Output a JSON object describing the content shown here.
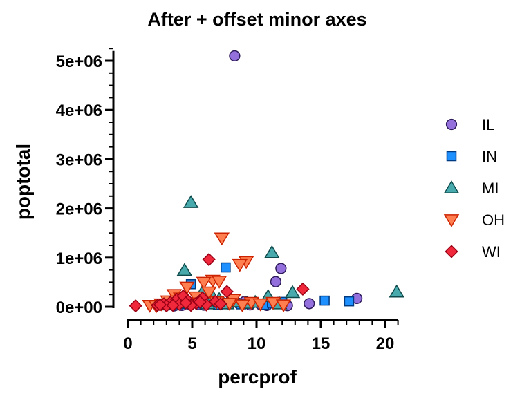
{
  "chart_data": {
    "type": "scatter",
    "title": "After + offset minor axes",
    "xlabel": "percprof",
    "ylabel": "poptotal",
    "xlim": [
      0,
      21
    ],
    "ylim": [
      0,
      5200000
    ],
    "xticks": [
      0,
      5,
      10,
      15,
      20
    ],
    "xtick_labels": [
      "0",
      "5",
      "10",
      "15",
      "20"
    ],
    "yticks": [
      0,
      1000000,
      2000000,
      3000000,
      4000000,
      5000000
    ],
    "ytick_labels": [
      "0e+00",
      "1e+06",
      "2e+06",
      "3e+06",
      "4e+06",
      "5e+06"
    ],
    "grid": false,
    "legend_position": "right",
    "series": [
      {
        "name": "IL",
        "marker": "circle",
        "color": "#9370db",
        "stroke": "#2c1a5a",
        "points": [
          [
            8.3,
            5100000
          ],
          [
            11.9,
            780000
          ],
          [
            11.5,
            510000
          ],
          [
            17.8,
            170000
          ],
          [
            14.1,
            65000
          ],
          [
            10.3,
            50000
          ],
          [
            9.1,
            110000
          ],
          [
            8.6,
            70000
          ],
          [
            7.4,
            80000
          ],
          [
            6.2,
            60000
          ],
          [
            5.5,
            45000
          ],
          [
            4.8,
            40000
          ],
          [
            4.2,
            30000
          ],
          [
            6.9,
            90000
          ],
          [
            7.8,
            60000
          ],
          [
            9.5,
            40000
          ],
          [
            3.6,
            20000
          ],
          [
            5.9,
            35000
          ],
          [
            10.8,
            30000
          ],
          [
            12.4,
            25000
          ]
        ]
      },
      {
        "name": "IN",
        "marker": "square",
        "color": "#1e90ff",
        "stroke": "#003a80",
        "points": [
          [
            7.6,
            800000
          ],
          [
            4.9,
            460000
          ],
          [
            15.3,
            125000
          ],
          [
            17.2,
            110000
          ],
          [
            12.0,
            100000
          ],
          [
            9.8,
            90000
          ],
          [
            8.1,
            110000
          ],
          [
            6.4,
            120000
          ],
          [
            5.6,
            70000
          ],
          [
            4.6,
            60000
          ],
          [
            3.9,
            50000
          ],
          [
            7.0,
            40000
          ],
          [
            8.8,
            50000
          ],
          [
            10.6,
            40000
          ],
          [
            11.2,
            80000
          ],
          [
            2.9,
            30000
          ],
          [
            6.0,
            55000
          ],
          [
            5.1,
            85000
          ]
        ]
      },
      {
        "name": "MI",
        "marker": "triangle-up",
        "color": "#48aaad",
        "stroke": "#0e4a4c",
        "points": [
          [
            4.9,
            2120000
          ],
          [
            11.2,
            1100000
          ],
          [
            4.4,
            740000
          ],
          [
            20.9,
            300000
          ],
          [
            12.8,
            290000
          ],
          [
            10.9,
            210000
          ],
          [
            9.9,
            90000
          ],
          [
            8.4,
            100000
          ],
          [
            7.1,
            150000
          ],
          [
            6.6,
            200000
          ],
          [
            5.4,
            160000
          ],
          [
            4.5,
            120000
          ],
          [
            3.8,
            80000
          ],
          [
            6.2,
            60000
          ],
          [
            7.7,
            60000
          ],
          [
            9.2,
            70000
          ],
          [
            5.8,
            300000
          ],
          [
            2.7,
            40000
          ],
          [
            11.8,
            60000
          ]
        ]
      },
      {
        "name": "OH",
        "marker": "triangle-down",
        "color": "#ff7f50",
        "stroke": "#cc2200",
        "points": [
          [
            7.3,
            1400000
          ],
          [
            9.2,
            920000
          ],
          [
            8.7,
            860000
          ],
          [
            6.6,
            540000
          ],
          [
            7.1,
            520000
          ],
          [
            5.9,
            500000
          ],
          [
            4.6,
            400000
          ],
          [
            3.6,
            250000
          ],
          [
            6.3,
            300000
          ],
          [
            5.3,
            200000
          ],
          [
            8.2,
            150000
          ],
          [
            9.6,
            90000
          ],
          [
            10.3,
            60000
          ],
          [
            11.3,
            90000
          ],
          [
            12.1,
            40000
          ],
          [
            1.7,
            30000
          ],
          [
            2.6,
            60000
          ],
          [
            3.1,
            120000
          ],
          [
            4.1,
            180000
          ],
          [
            6.9,
            100000
          ],
          [
            7.9,
            70000
          ],
          [
            8.9,
            40000
          ],
          [
            5.0,
            80000
          ],
          [
            2.2,
            20000
          ]
        ]
      },
      {
        "name": "WI",
        "marker": "diamond",
        "color": "#f0283c",
        "stroke": "#990014",
        "points": [
          [
            6.3,
            960000
          ],
          [
            13.6,
            360000
          ],
          [
            7.7,
            310000
          ],
          [
            0.6,
            20000
          ],
          [
            2.3,
            30000
          ],
          [
            2.8,
            60000
          ],
          [
            3.3,
            90000
          ],
          [
            3.8,
            150000
          ],
          [
            4.3,
            220000
          ],
          [
            4.7,
            120000
          ],
          [
            5.3,
            70000
          ],
          [
            5.8,
            180000
          ],
          [
            6.1,
            40000
          ],
          [
            6.8,
            110000
          ],
          [
            7.2,
            60000
          ],
          [
            3.0,
            20000
          ],
          [
            2.5,
            40000
          ],
          [
            4.0,
            50000
          ],
          [
            4.9,
            30000
          ],
          [
            5.6,
            100000
          ],
          [
            3.5,
            30000
          ],
          [
            4.5,
            80000
          ]
        ]
      }
    ]
  }
}
